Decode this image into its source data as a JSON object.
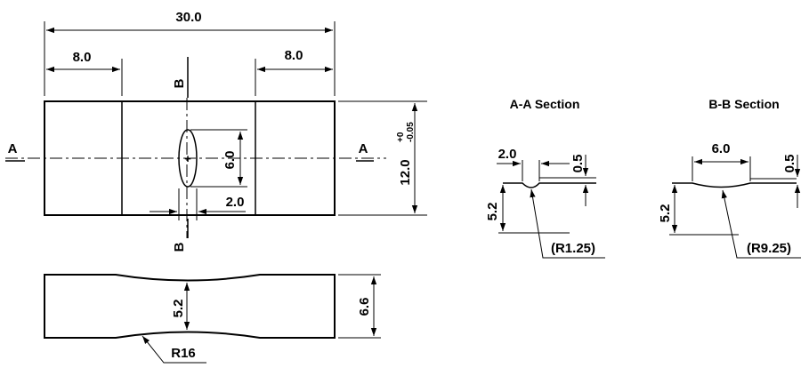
{
  "plan_view": {
    "overall_length": "30.0",
    "left_shoulder": "8.0",
    "right_shoulder": "8.0",
    "width_tolerance": "12.0",
    "tolerance_upper": "+0",
    "tolerance_lower": "-0.05",
    "notch_length": "6.0",
    "notch_width": "2.0",
    "section_a_left": "A",
    "section_a_right": "A",
    "section_b_top": "B",
    "section_b_bottom": "B"
  },
  "side_view": {
    "thickness": "6.6",
    "min_thickness": "5.2",
    "radius": "R16"
  },
  "section_aa": {
    "title": "A-A Section",
    "width": "2.0",
    "depth": "0.5",
    "height": "5.2",
    "radius": "(R1.25)"
  },
  "section_bb": {
    "title": "B-B Section",
    "width": "6.0",
    "depth": "0.5",
    "height": "5.2",
    "radius": "(R9.25)"
  }
}
